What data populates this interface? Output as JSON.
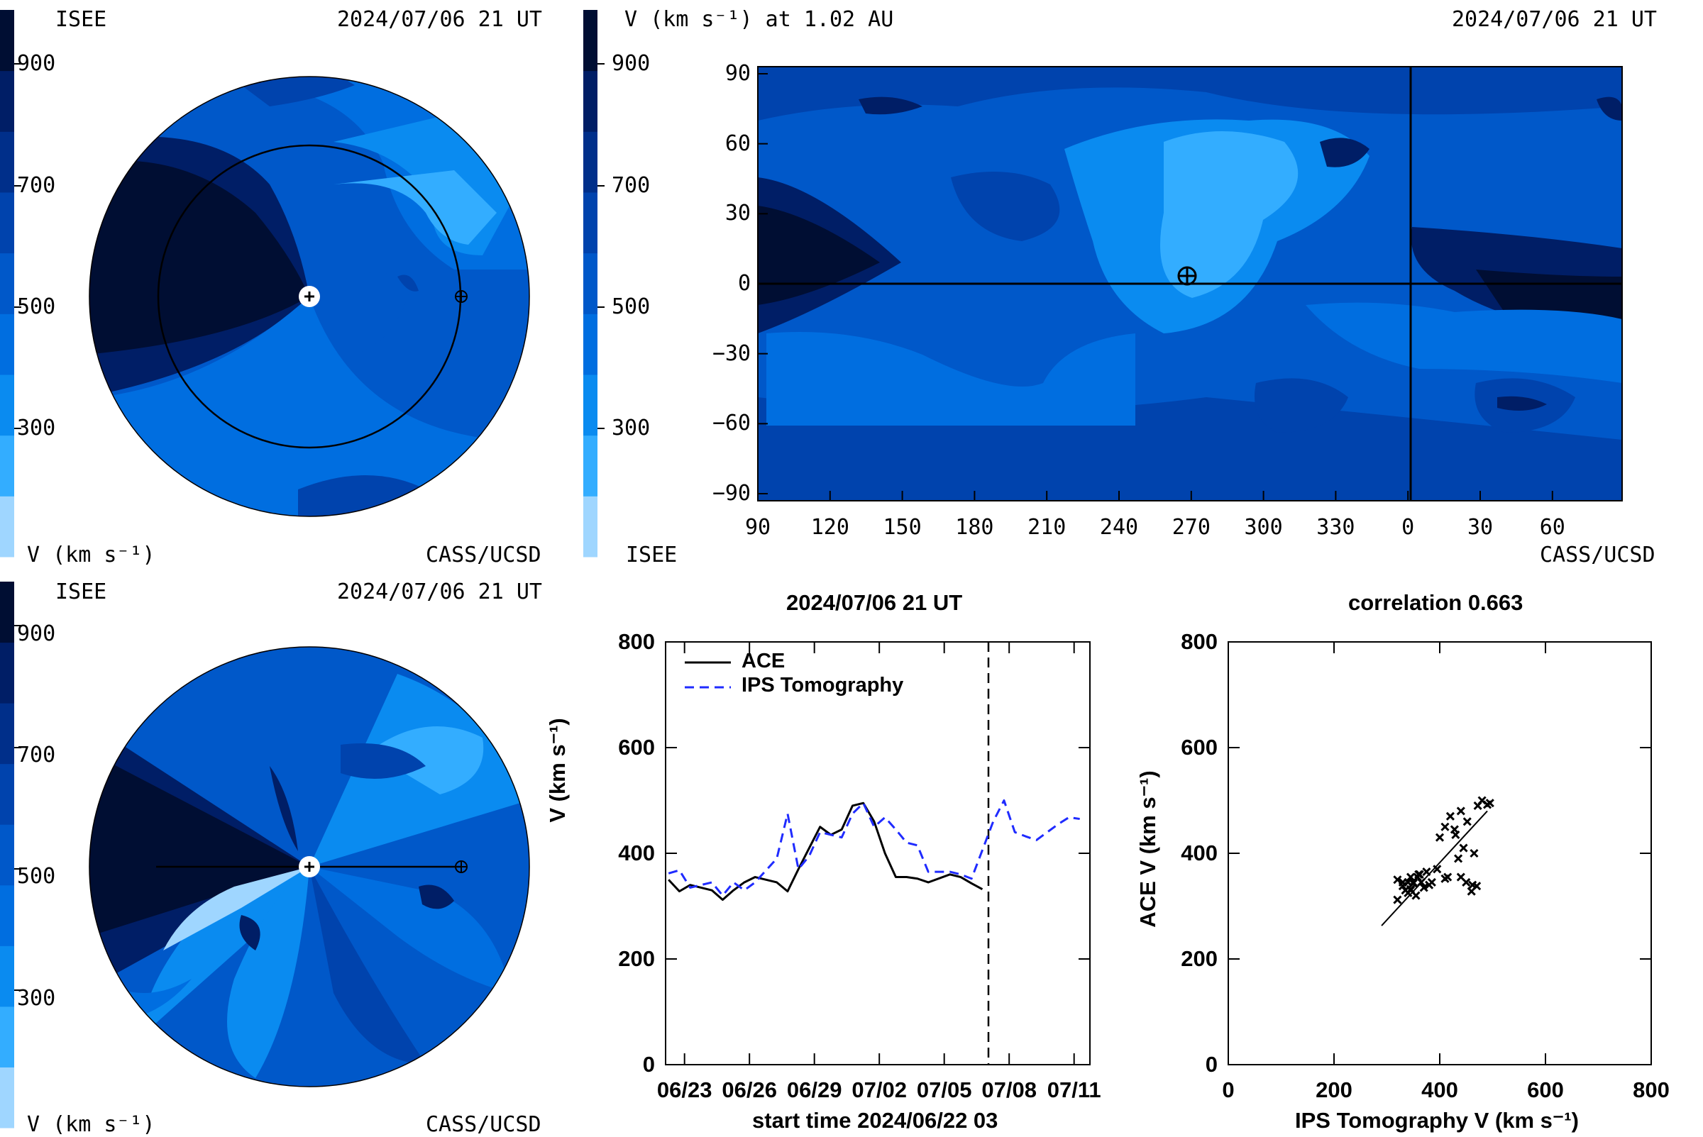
{
  "colors": {
    "colorbar_levels": [
      "#9fd6ff",
      "#33adff",
      "#0a8bf0",
      "#006ee0",
      "#0058c9",
      "#0043ad",
      "#002f8a",
      "#001e66",
      "#000e33"
    ],
    "ace_line": "#000000",
    "ips_line": "#1f2bff"
  },
  "top_left": {
    "logo": "ISEE",
    "timestamp": "2024/07/06 21 UT",
    "colorbar_ticks": [
      "900",
      "700",
      "500",
      "300"
    ],
    "unit_label": "V (km s⁻¹)",
    "credit": "CASS/UCSD"
  },
  "top_right": {
    "title": "V (km s⁻¹) at 1.02 AU",
    "timestamp": "2024/07/06 21 UT",
    "colorbar_ticks": [
      "900",
      "700",
      "500",
      "300"
    ],
    "logo": "ISEE",
    "credit": "CASS/UCSD",
    "y_ticks": [
      "90",
      "60",
      "30",
      "0",
      "−30",
      "−60",
      "−90"
    ],
    "x_ticks": [
      "90",
      "120",
      "150",
      "180",
      "210",
      "240",
      "270",
      "300",
      "330",
      "0",
      "30",
      "60"
    ]
  },
  "bottom_left": {
    "logo": "ISEE",
    "timestamp": "2024/07/06 21 UT",
    "colorbar_ticks": [
      "900",
      "700",
      "500",
      "300"
    ],
    "unit_label": "V (km s⁻¹)",
    "credit": "CASS/UCSD"
  },
  "chart_data": [
    {
      "type": "line",
      "title": "2024/07/06 21 UT",
      "xlabel": "start time 2024/06/22 03",
      "ylabel": "V (km s⁻¹)",
      "x_tick_labels": [
        "06/23",
        "06/26",
        "06/29",
        "07/02",
        "07/05",
        "07/08",
        "07/11"
      ],
      "y_ticks": [
        0,
        200,
        400,
        600,
        800
      ],
      "ylim": [
        0,
        800
      ],
      "legend_placement": "top-left",
      "series": [
        {
          "name": "ACE",
          "x": [
            "06/22",
            "06/22",
            "06/23",
            "06/24",
            "06/24",
            "06/25",
            "06/25",
            "06/26",
            "06/27",
            "06/27",
            "06/28",
            "06/29",
            "06/29",
            "06/30",
            "06/30",
            "07/01",
            "07/01",
            "07/02",
            "07/02",
            "07/03",
            "07/03",
            "07/04",
            "07/05",
            "07/05",
            "07/06",
            "07/06"
          ],
          "values": [
            350,
            328,
            340,
            330,
            312,
            330,
            345,
            355,
            345,
            328,
            370,
            450,
            435,
            445,
            490,
            495,
            460,
            400,
            355,
            355,
            352,
            345,
            360,
            355,
            343,
            332
          ]
        },
        {
          "name": "IPS Tomography",
          "x": [
            "06/22",
            "06/22",
            "06/23",
            "06/24",
            "06/24",
            "06/25",
            "06/25",
            "06/26",
            "06/27",
            "06/27",
            "06/28",
            "06/28",
            "06/29",
            "06/30",
            "06/30",
            "07/01",
            "07/01",
            "07/02",
            "07/02",
            "07/03",
            "07/03",
            "07/04",
            "07/05",
            "07/05",
            "07/06",
            "07/07",
            "07/07",
            "07/08",
            "07/08",
            "07/09",
            "07/10",
            "07/10",
            "07/11"
          ],
          "values": [
            362,
            368,
            335,
            345,
            320,
            345,
            330,
            345,
            390,
            475,
            370,
            395,
            440,
            430,
            475,
            495,
            450,
            468,
            445,
            420,
            415,
            365,
            365,
            360,
            352,
            460,
            500,
            440,
            432,
            425,
            455,
            468,
            465
          ]
        }
      ]
    },
    {
      "type": "scatter",
      "title": "correlation 0.663",
      "xlabel": "IPS Tomography V (km s⁻¹)",
      "ylabel": "ACE V (km s⁻¹)",
      "xlim": [
        0,
        800
      ],
      "ylim": [
        0,
        800
      ],
      "x_ticks": [
        0,
        200,
        400,
        600,
        800
      ],
      "y_ticks": [
        0,
        200,
        400,
        600,
        800
      ],
      "points": [
        [
          320,
          350
        ],
        [
          330,
          345
        ],
        [
          340,
          345
        ],
        [
          345,
          330
        ],
        [
          320,
          312
        ],
        [
          335,
          330
        ],
        [
          350,
          345
        ],
        [
          345,
          355
        ],
        [
          385,
          345
        ],
        [
          460,
          328
        ],
        [
          395,
          370
        ],
        [
          410,
          450
        ],
        [
          430,
          435
        ],
        [
          428,
          445
        ],
        [
          472,
          490
        ],
        [
          495,
          495
        ],
        [
          452,
          460
        ],
        [
          465,
          400
        ],
        [
          440,
          355
        ],
        [
          415,
          355
        ],
        [
          410,
          352
        ],
        [
          365,
          345
        ],
        [
          362,
          360
        ],
        [
          358,
          355
        ],
        [
          350,
          343
        ],
        [
          345,
          332
        ],
        [
          330,
          338
        ],
        [
          360,
          360
        ],
        [
          375,
          365
        ],
        [
          400,
          430
        ],
        [
          420,
          470
        ],
        [
          440,
          480
        ],
        [
          480,
          500
        ],
        [
          490,
          492
        ],
        [
          462,
          340
        ],
        [
          470,
          338
        ],
        [
          450,
          345
        ],
        [
          355,
          320
        ],
        [
          340,
          325
        ],
        [
          370,
          335
        ],
        [
          380,
          340
        ],
        [
          445,
          410
        ],
        [
          435,
          390
        ]
      ],
      "fit_line": {
        "x": [
          290,
          490
        ],
        "y": [
          263,
          480
        ]
      }
    }
  ]
}
